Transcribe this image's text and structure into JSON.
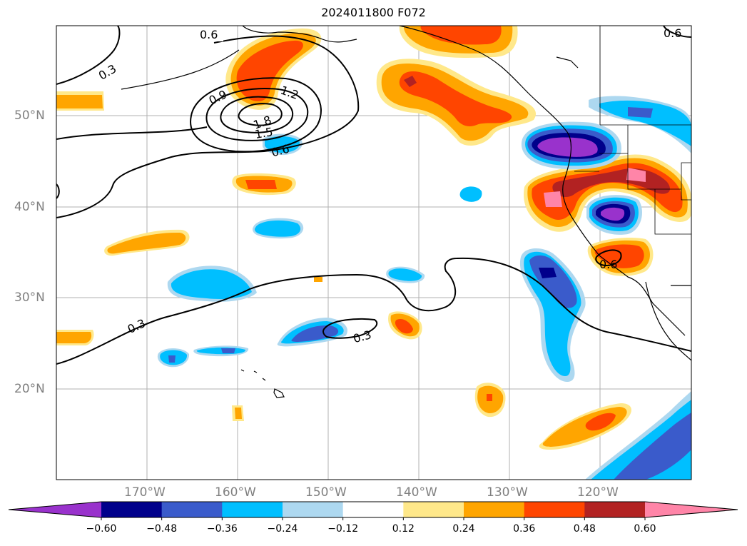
{
  "title": "2024011800 F072",
  "latitude_labels": [
    "50°N",
    "40°N",
    "30°N",
    "20°N"
  ],
  "longitude_labels": [
    "170°W",
    "160°W",
    "150°W",
    "140°W",
    "130°W",
    "120°W"
  ],
  "contour_labels": [
    "0.6",
    "0.3",
    "0.9",
    "1.2",
    "1.8",
    "1.5",
    "0.6",
    "0.3",
    "0.3",
    "0.6",
    "0.6"
  ],
  "colorbar": {
    "ticks": [
      "−0.60",
      "−0.48",
      "−0.36",
      "−0.24",
      "−0.12",
      "0.12",
      "0.24",
      "0.36",
      "0.48",
      "0.60"
    ],
    "colors": [
      "#9932cc",
      "#00008b",
      "#3a5bcb",
      "#00bfff",
      "#add8f0",
      "#ffffff",
      "#ffe88a",
      "#ffa500",
      "#ff4500",
      "#b22222",
      "#ff85a8"
    ]
  }
}
